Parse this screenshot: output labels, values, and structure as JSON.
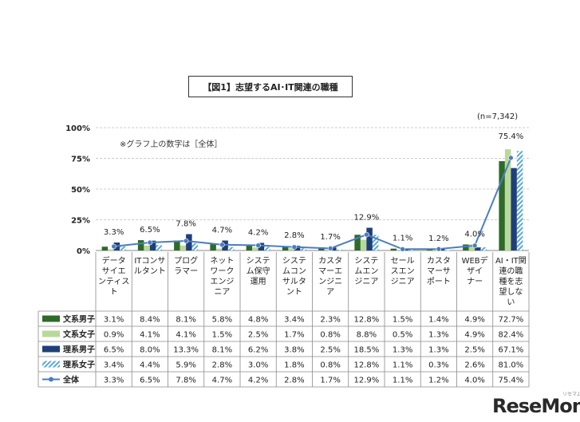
{
  "title": "【図1】志望するAI･IT関連の職種",
  "sample_size": "(n=7,342)",
  "note": "※グラフ上の数字は［全体］",
  "watermark": {
    "main": "ReseMom",
    "sub": "リセマム"
  },
  "colors": {
    "bunkei_male": "#2e6a29",
    "bunkei_female": "#b9d99a",
    "rikei_male": "#1f3f7a",
    "rikei_female_stripe": "#5aa9d6",
    "overall_line": "#4a7ebf"
  },
  "chart_data": {
    "type": "bar",
    "title": "【図1】志望するAI･IT関連の職種",
    "ylim": [
      0,
      100
    ],
    "yticks": [
      "0%",
      "25%",
      "50%",
      "75%",
      "100%"
    ],
    "grid": "dashed-horizontal",
    "categories": [
      "データサイエンティスト",
      "ITコンサルタント",
      "プログラマー",
      "ネットワークエンジニア",
      "システム保守運用",
      "システムコンサルタント",
      "カスタマーエンジニア",
      "システムエンジニア",
      "セールスエンジニア",
      "カスタマーサポート",
      "WEBデザイナー",
      "AI・IT関連の職種を志望しない"
    ],
    "category_lines": [
      [
        "データ",
        "サイエ",
        "ンティス",
        "ト"
      ],
      [
        "ITコンサ",
        "ルタント"
      ],
      [
        "プログ",
        "ラマー"
      ],
      [
        "ネット",
        "ワーク",
        "エンジ",
        "ニア"
      ],
      [
        "システ",
        "ム保守",
        "運用"
      ],
      [
        "システ",
        "ムコン",
        "サルタ",
        "ント"
      ],
      [
        "カスタ",
        "マーエ",
        "ンジニ",
        "ア"
      ],
      [
        "システ",
        "ムエン",
        "ジニア"
      ],
      [
        "セール",
        "スエン",
        "ジニア"
      ],
      [
        "カスタ",
        "マーサ",
        "ポート"
      ],
      [
        "WEBデ",
        "ザイ",
        "ナー"
      ],
      [
        "AI・IT関",
        "連の職",
        "種を志",
        "望しな",
        "い"
      ]
    ],
    "series": [
      {
        "name": "文系男子",
        "kind": "bar",
        "color": "#2e6a29",
        "values": [
          3.1,
          8.4,
          8.1,
          5.8,
          4.8,
          3.4,
          2.3,
          12.8,
          1.5,
          1.4,
          4.9,
          72.7
        ]
      },
      {
        "name": "文系女子",
        "kind": "bar",
        "color": "#b9d99a",
        "values": [
          0.9,
          4.1,
          4.1,
          1.5,
          2.5,
          1.7,
          0.8,
          8.8,
          0.5,
          1.3,
          4.9,
          82.4
        ]
      },
      {
        "name": "理系男子",
        "kind": "bar",
        "color": "#1f3f7a",
        "values": [
          6.5,
          8.0,
          13.3,
          8.1,
          6.2,
          3.8,
          2.5,
          18.5,
          1.3,
          1.3,
          2.5,
          67.1
        ]
      },
      {
        "name": "理系女子",
        "kind": "bar-striped",
        "color": "#5aa9d6",
        "values": [
          3.4,
          4.4,
          5.9,
          2.8,
          3.0,
          1.8,
          0.8,
          12.8,
          1.1,
          0.3,
          2.6,
          81.0
        ]
      },
      {
        "name": "全体",
        "kind": "line",
        "color": "#4a7ebf",
        "values": [
          3.3,
          6.5,
          7.8,
          4.7,
          4.2,
          2.8,
          1.7,
          12.9,
          1.1,
          1.2,
          4.0,
          75.4
        ]
      }
    ],
    "data_labels_series": "全体",
    "table": {
      "rows": [
        [
          "3.1%",
          "8.4%",
          "8.1%",
          "5.8%",
          "4.8%",
          "3.4%",
          "2.3%",
          "12.8%",
          "1.5%",
          "1.4%",
          "4.9%",
          "72.7%"
        ],
        [
          "0.9%",
          "4.1%",
          "4.1%",
          "1.5%",
          "2.5%",
          "1.7%",
          "0.8%",
          "8.8%",
          "0.5%",
          "1.3%",
          "4.9%",
          "82.4%"
        ],
        [
          "6.5%",
          "8.0%",
          "13.3%",
          "8.1%",
          "6.2%",
          "3.8%",
          "2.5%",
          "18.5%",
          "1.3%",
          "1.3%",
          "2.5%",
          "67.1%"
        ],
        [
          "3.4%",
          "4.4%",
          "5.9%",
          "2.8%",
          "3.0%",
          "1.8%",
          "0.8%",
          "12.8%",
          "1.1%",
          "0.3%",
          "2.6%",
          "81.0%"
        ],
        [
          "3.3%",
          "6.5%",
          "7.8%",
          "4.7%",
          "4.2%",
          "2.8%",
          "1.7%",
          "12.9%",
          "1.1%",
          "1.2%",
          "4.0%",
          "75.4%"
        ]
      ]
    }
  }
}
